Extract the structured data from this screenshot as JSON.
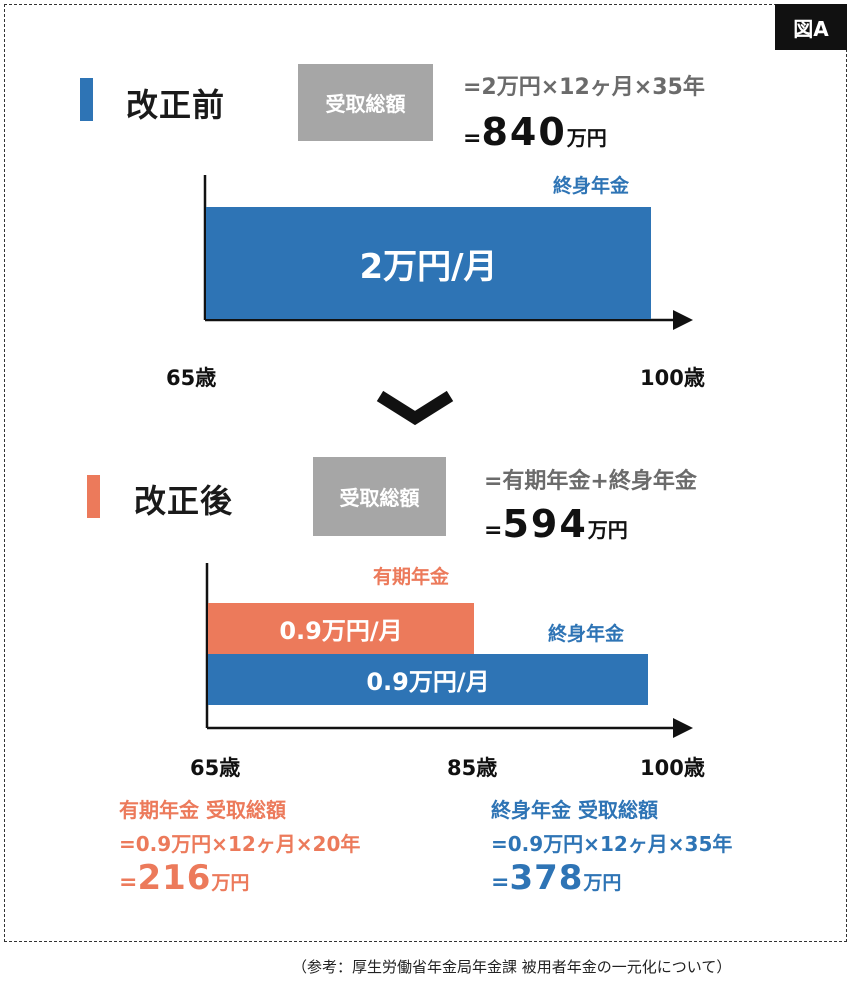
{
  "figure_label": "図A",
  "colors": {
    "blue": "#2e74b5",
    "orange": "#ec7a5b",
    "grey_box": "#a6a6a6",
    "formula_text": "#6b6b6b"
  },
  "before": {
    "title": "改正前",
    "box_label": "受取総額",
    "formula": "=2万円×12ヶ月×35年",
    "total_eq": "=",
    "total_value": "840",
    "total_unit": "万円",
    "chart_data": {
      "type": "bar",
      "x_start_label": "65歳",
      "x_end_label": "100歳",
      "x_range": [
        65,
        100
      ],
      "series": [
        {
          "label": "終身年金",
          "bar_text": "2万円/月",
          "start": 65,
          "end": 100,
          "value_per_month": 2,
          "color": "#2e74b5"
        }
      ]
    }
  },
  "arrow_icon": "chevron-down-icon",
  "after": {
    "title": "改正後",
    "box_label": "受取総額",
    "formula": "=有期年金+終身年金",
    "total_eq": "=",
    "total_value": "594",
    "total_unit": "万円",
    "chart_data": {
      "type": "bar",
      "x_start_label": "65歳",
      "x_mid_label": "85歳",
      "x_end_label": "100歳",
      "x_range": [
        65,
        100
      ],
      "series": [
        {
          "label": "有期年金",
          "bar_text": "0.9万円/月",
          "start": 65,
          "end": 85,
          "value_per_month": 0.9,
          "color": "#ec7a5b"
        },
        {
          "label": "終身年金",
          "bar_text": "0.9万円/月",
          "start": 65,
          "end": 100,
          "value_per_month": 0.9,
          "color": "#2e74b5"
        }
      ]
    },
    "summary_fixed": {
      "title": "有期年金 受取総額",
      "formula": "=0.9万円×12ヶ月×20年",
      "total_eq": "=",
      "total_value": "216",
      "total_unit": "万円"
    },
    "summary_life": {
      "title": "終身年金 受取総額",
      "formula": "=0.9万円×12ヶ月×35年",
      "total_eq": "=",
      "total_value": "378",
      "total_unit": "万円"
    }
  },
  "source": "（参考：厚生労働省年金局年金課 被用者年金の一元化について）"
}
